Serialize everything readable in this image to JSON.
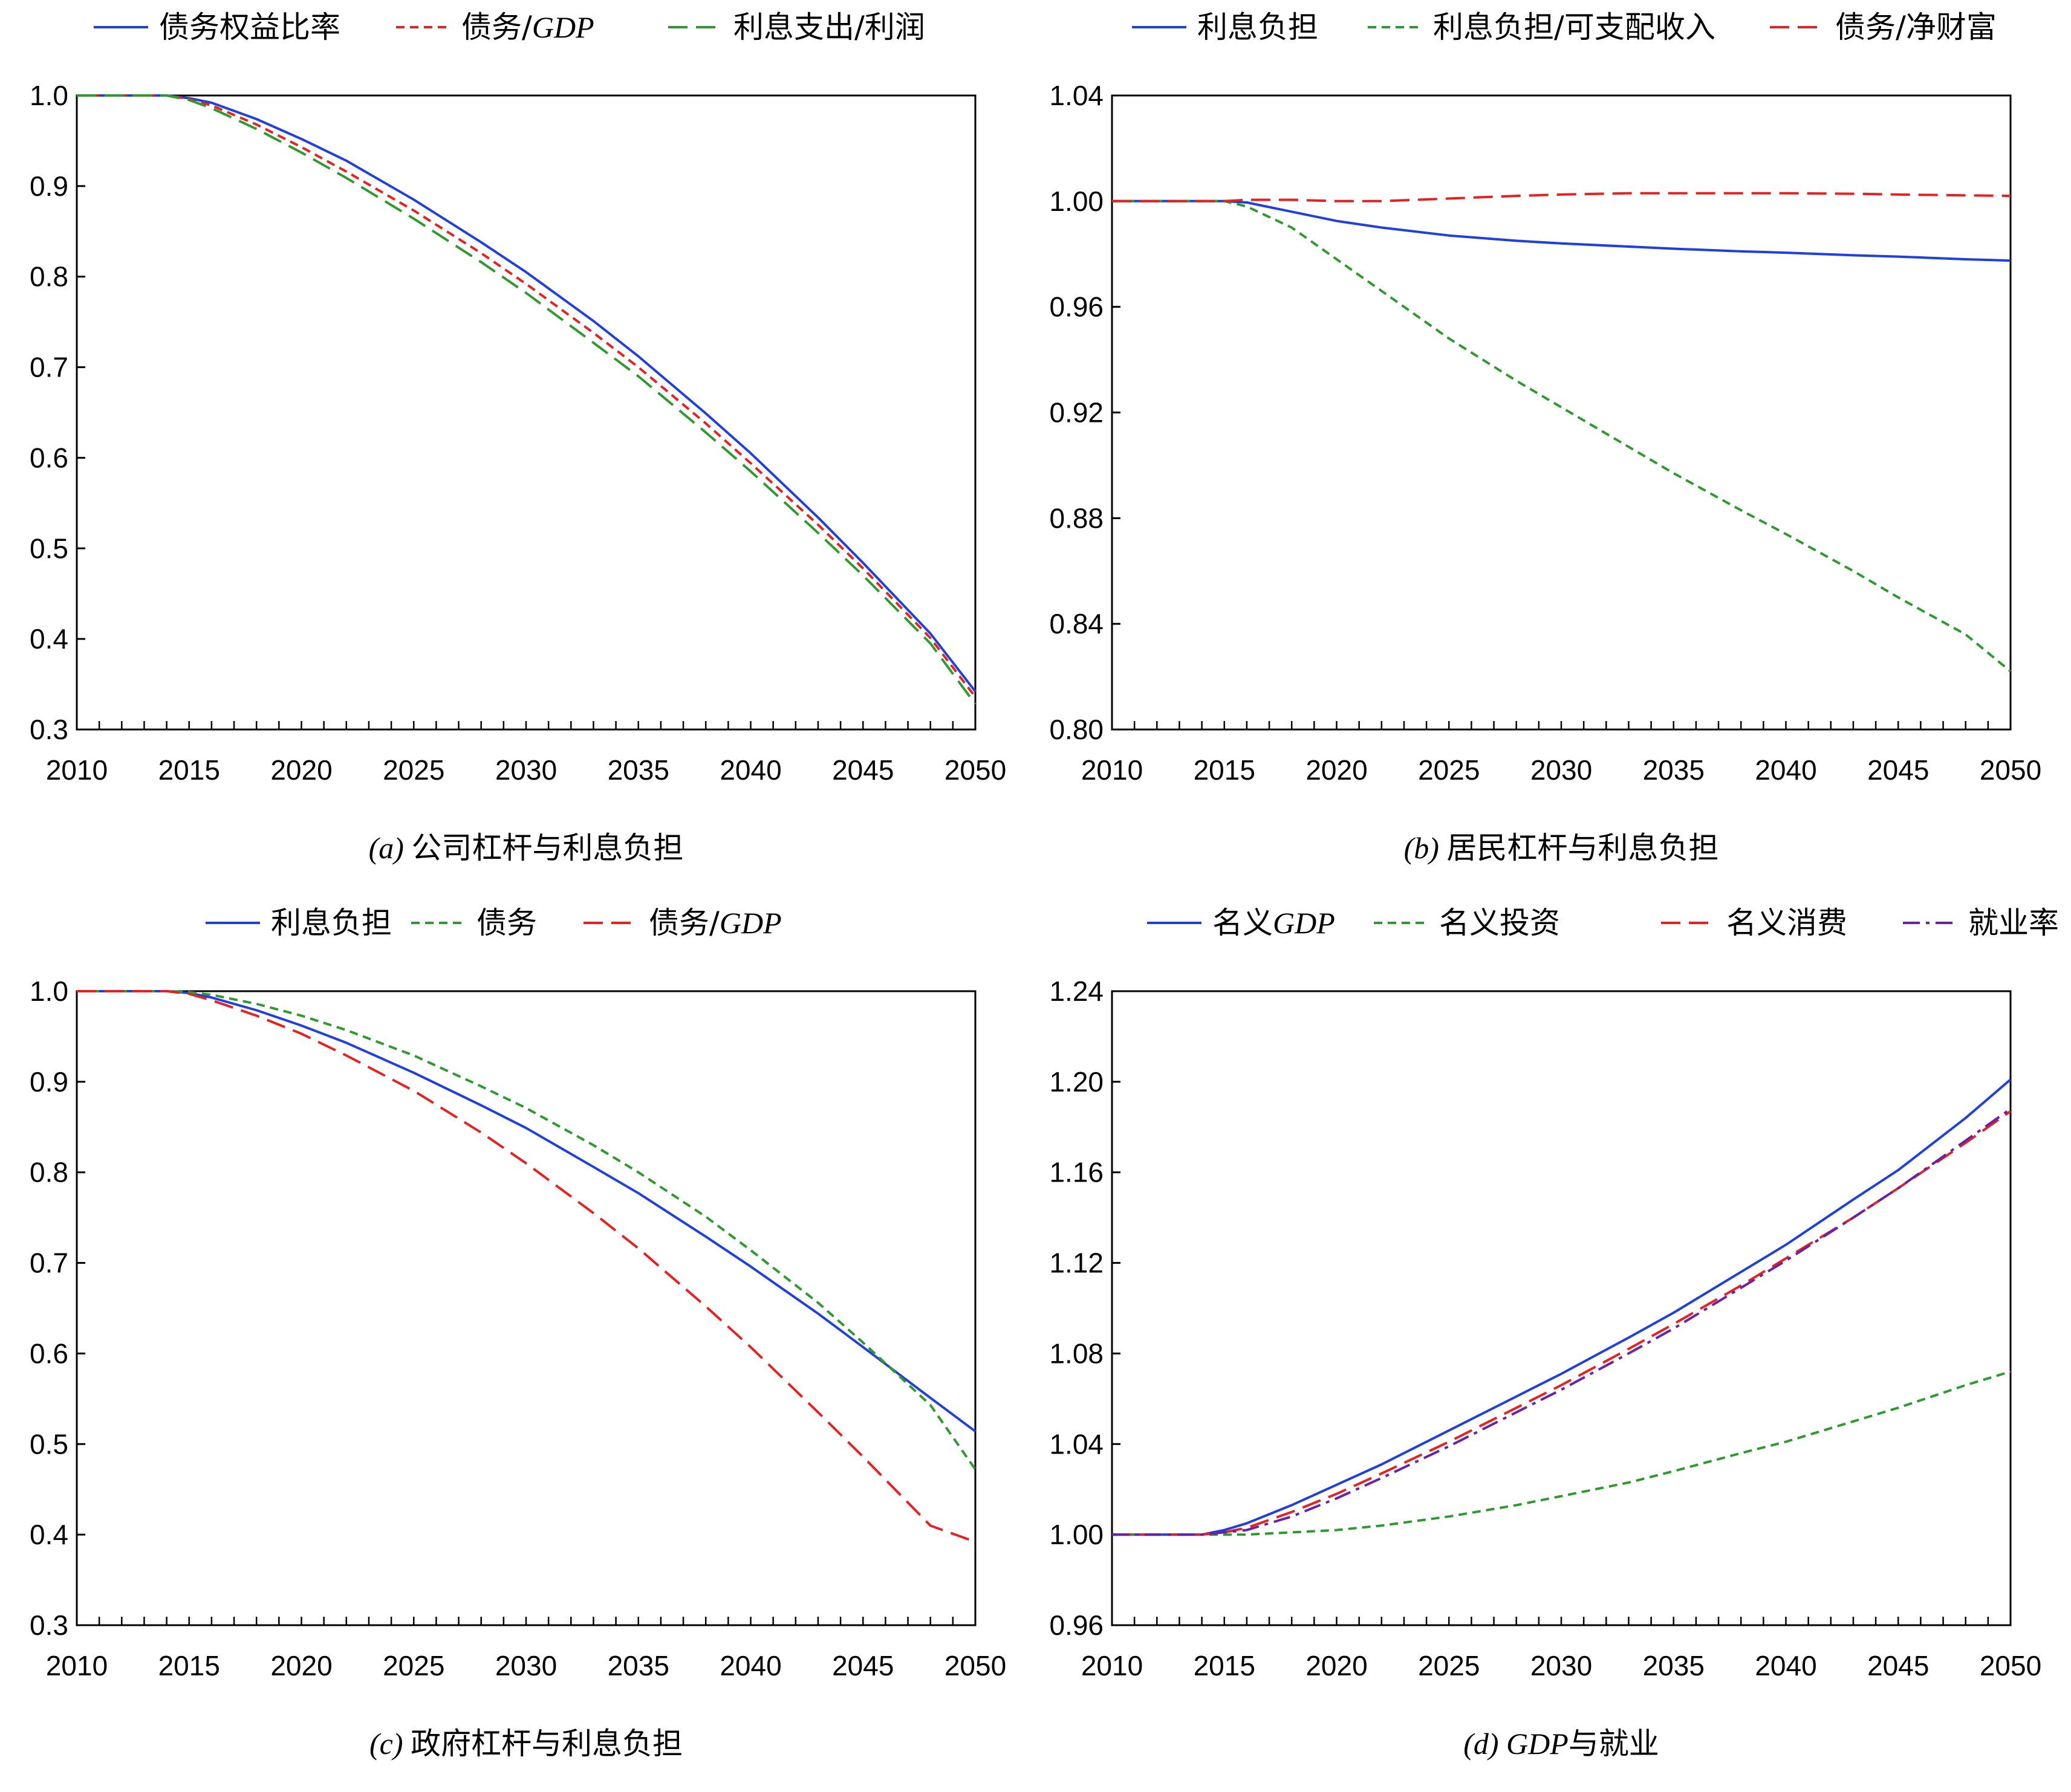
{
  "chart_data": [
    {
      "type": "line",
      "caption": {
        "prefix": "(a)",
        "text": "公司杠杆与利息负担"
      },
      "xlim": [
        2010,
        2050
      ],
      "ylim": [
        0.3,
        1.0
      ],
      "x_ticks": [
        2010,
        2015,
        2020,
        2025,
        2030,
        2035,
        2040,
        2045,
        2050
      ],
      "y_ticks": [
        "0.3",
        "0.4",
        "0.5",
        "0.6",
        "0.7",
        "0.8",
        "0.9",
        "1.0"
      ],
      "legend_position": "top",
      "x": [
        2010,
        2014,
        2015,
        2016,
        2018,
        2020,
        2022,
        2025,
        2028,
        2030,
        2033,
        2035,
        2038,
        2040,
        2043,
        2045,
        2048,
        2050
      ],
      "series": [
        {
          "name": "债务权益比率",
          "name_parts": [
            "债务权益比率"
          ],
          "color": "#1f3fe0",
          "dash": "solid",
          "values": [
            1.0,
            1.0,
            0.997,
            0.992,
            0.974,
            0.952,
            0.928,
            0.885,
            0.838,
            0.805,
            0.751,
            0.712,
            0.649,
            0.605,
            0.534,
            0.484,
            0.406,
            0.342
          ]
        },
        {
          "name": "债务/GDP",
          "name_parts": [
            "债务/",
            "GDP"
          ],
          "color": "#e8201f",
          "dash": "short",
          "values": [
            1.0,
            1.0,
            0.996,
            0.989,
            0.968,
            0.943,
            0.916,
            0.873,
            0.826,
            0.792,
            0.738,
            0.7,
            0.638,
            0.594,
            0.526,
            0.478,
            0.401,
            0.336
          ]
        },
        {
          "name": "利息支出/利润",
          "name_parts": [
            "利息支出/利润"
          ],
          "color": "#2e9a2e",
          "dash": "long",
          "values": [
            1.0,
            1.0,
            0.995,
            0.986,
            0.963,
            0.937,
            0.909,
            0.864,
            0.816,
            0.782,
            0.727,
            0.69,
            0.628,
            0.585,
            0.517,
            0.47,
            0.395,
            0.328
          ]
        }
      ]
    },
    {
      "type": "line",
      "caption": {
        "prefix": "(b)",
        "text": "居民杠杆与利息负担"
      },
      "xlim": [
        2010,
        2050
      ],
      "ylim": [
        0.8,
        1.04
      ],
      "x_ticks": [
        2010,
        2015,
        2020,
        2025,
        2030,
        2035,
        2040,
        2045,
        2050
      ],
      "y_ticks": [
        "0.80",
        "0.84",
        "0.88",
        "0.92",
        "0.96",
        "1.00",
        "1.04"
      ],
      "legend_position": "top",
      "x": [
        2010,
        2014,
        2015,
        2016,
        2018,
        2020,
        2022,
        2025,
        2028,
        2030,
        2033,
        2035,
        2038,
        2040,
        2043,
        2045,
        2048,
        2050
      ],
      "series": [
        {
          "name": "利息负担",
          "name_parts": [
            "利息负担"
          ],
          "color": "#1f3fe0",
          "dash": "solid",
          "values": [
            1.0,
            1.0,
            1.0,
            0.9995,
            0.996,
            0.9925,
            0.99,
            0.987,
            0.985,
            0.984,
            0.9828,
            0.982,
            0.981,
            0.9805,
            0.9795,
            0.979,
            0.978,
            0.9775
          ]
        },
        {
          "name": "利息负担/可支配收入",
          "name_parts": [
            "利息负担/可支配收入"
          ],
          "color": "#2e9a2e",
          "dash": "short",
          "values": [
            1.0,
            1.0,
            1.0,
            0.998,
            0.99,
            0.978,
            0.966,
            0.948,
            0.932,
            0.922,
            0.907,
            0.897,
            0.883,
            0.874,
            0.86,
            0.85,
            0.836,
            0.822
          ]
        },
        {
          "name": "债务/净财富",
          "name_parts": [
            "债务/净财富"
          ],
          "color": "#e8201f",
          "dash": "long",
          "values": [
            1.0,
            1.0,
            1.0,
            1.0005,
            1.0005,
            1.0,
            1.0,
            1.001,
            1.002,
            1.0025,
            1.003,
            1.003,
            1.003,
            1.003,
            1.0028,
            1.0025,
            1.0022,
            1.002
          ]
        }
      ]
    },
    {
      "type": "line",
      "caption": {
        "prefix": "(c)",
        "text": "政府杠杆与利息负担"
      },
      "xlim": [
        2010,
        2050
      ],
      "ylim": [
        0.3,
        1.0
      ],
      "x_ticks": [
        2010,
        2015,
        2020,
        2025,
        2030,
        2035,
        2040,
        2045,
        2050
      ],
      "y_ticks": [
        "0.3",
        "0.4",
        "0.5",
        "0.6",
        "0.7",
        "0.8",
        "0.9",
        "1.0"
      ],
      "legend_position": "top",
      "x": [
        2010,
        2014,
        2015,
        2016,
        2018,
        2020,
        2022,
        2025,
        2028,
        2030,
        2033,
        2035,
        2038,
        2040,
        2043,
        2045,
        2048,
        2050
      ],
      "series": [
        {
          "name": "利息负担",
          "name_parts": [
            "利息负担"
          ],
          "color": "#1f3fe0",
          "dash": "solid",
          "values": [
            1.0,
            1.0,
            0.998,
            0.993,
            0.979,
            0.962,
            0.943,
            0.91,
            0.874,
            0.849,
            0.806,
            0.777,
            0.729,
            0.696,
            0.644,
            0.607,
            0.551,
            0.514
          ]
        },
        {
          "name": "债务",
          "name_parts": [
            "债务"
          ],
          "color": "#2e9a2e",
          "dash": "short",
          "values": [
            1.0,
            1.0,
            0.999,
            0.996,
            0.986,
            0.973,
            0.957,
            0.929,
            0.895,
            0.871,
            0.83,
            0.8,
            0.751,
            0.714,
            0.656,
            0.612,
            0.543,
            0.472
          ]
        },
        {
          "name": "债务/GDP",
          "name_parts": [
            "债务/",
            "GDP"
          ],
          "color": "#e8201f",
          "dash": "long",
          "values": [
            1.0,
            1.0,
            0.997,
            0.99,
            0.973,
            0.953,
            0.929,
            0.89,
            0.844,
            0.81,
            0.755,
            0.716,
            0.652,
            0.607,
            0.535,
            0.486,
            0.41,
            0.392
          ]
        }
      ]
    },
    {
      "type": "line",
      "caption": {
        "prefix": "(d)",
        "text": "与就业",
        "text_italic_prefix": "GDP"
      },
      "xlim": [
        2010,
        2050
      ],
      "ylim": [
        0.96,
        1.24
      ],
      "x_ticks": [
        2010,
        2015,
        2020,
        2025,
        2030,
        2035,
        2040,
        2045,
        2050
      ],
      "y_ticks": [
        "0.96",
        "1.00",
        "1.04",
        "1.08",
        "1.12",
        "1.16",
        "1.20",
        "1.24"
      ],
      "legend_position": "top",
      "x": [
        2010,
        2014,
        2015,
        2016,
        2018,
        2020,
        2022,
        2025,
        2028,
        2030,
        2033,
        2035,
        2038,
        2040,
        2043,
        2045,
        2048,
        2050
      ],
      "series": [
        {
          "name": "名义GDP",
          "name_parts": [
            "名义",
            "GDP"
          ],
          "color": "#1f3fe0",
          "dash": "solid",
          "values": [
            1.0,
            1.0,
            1.002,
            1.005,
            1.013,
            1.022,
            1.031,
            1.046,
            1.061,
            1.071,
            1.087,
            1.098,
            1.116,
            1.128,
            1.148,
            1.161,
            1.184,
            1.201
          ]
        },
        {
          "name": "名义投资",
          "name_parts": [
            "名义投资"
          ],
          "color": "#2e9a2e",
          "dash": "short",
          "values": [
            1.0,
            1.0,
            1.0,
            1.0,
            1.001,
            1.002,
            1.004,
            1.008,
            1.013,
            1.017,
            1.023,
            1.028,
            1.036,
            1.041,
            1.05,
            1.056,
            1.066,
            1.072
          ]
        },
        {
          "name": "名义消费",
          "name_parts": [
            "名义消费"
          ],
          "color": "#e8201f",
          "dash": "long",
          "values": [
            1.0,
            1.0,
            1.001,
            1.003,
            1.01,
            1.018,
            1.027,
            1.041,
            1.056,
            1.066,
            1.082,
            1.093,
            1.11,
            1.122,
            1.14,
            1.153,
            1.173,
            1.187
          ]
        },
        {
          "name": "就业率",
          "name_parts": [
            "就业率"
          ],
          "color": "#6a20a8",
          "dash": "dashdot",
          "values": [
            1.0,
            1.0,
            1.001,
            1.002,
            1.008,
            1.016,
            1.025,
            1.039,
            1.054,
            1.064,
            1.08,
            1.091,
            1.109,
            1.121,
            1.14,
            1.153,
            1.174,
            1.188
          ]
        }
      ]
    }
  ]
}
